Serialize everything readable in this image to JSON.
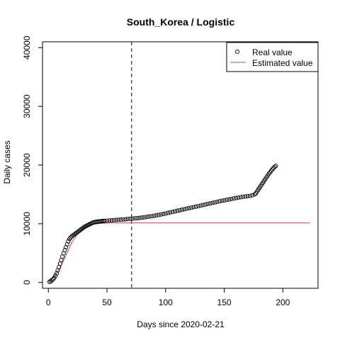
{
  "chart_data": {
    "type": "scatter",
    "title": "South_Korea / Logistic",
    "xlabel": "Days since 2020-02-21",
    "ylabel": "Daily cases",
    "xlim": [
      -5,
      230
    ],
    "ylim": [
      -1000,
      41000
    ],
    "x_ticks": [
      0,
      50,
      100,
      150,
      200
    ],
    "y_ticks": [
      0,
      10000,
      20000,
      30000,
      40000
    ],
    "vline_x": 71,
    "legend": {
      "position": "top-right",
      "entries": [
        {
          "label": "Real value",
          "marker": "open-circle",
          "color": "#000000"
        },
        {
          "label": "Estimated value",
          "marker": "line",
          "color": "#c0506e"
        }
      ]
    },
    "series": [
      {
        "name": "Real value",
        "marker": "open-circle",
        "x": [
          1,
          2,
          3,
          4,
          5,
          6,
          7,
          8,
          9,
          10,
          11,
          12,
          13,
          14,
          15,
          16,
          17,
          18,
          19,
          20,
          21,
          22,
          23,
          24,
          25,
          26,
          27,
          28,
          29,
          30,
          31,
          32,
          33,
          34,
          35,
          36,
          37,
          38,
          39,
          40,
          41,
          42,
          43,
          44,
          45,
          46,
          47,
          48,
          50,
          52,
          54,
          56,
          58,
          60,
          62,
          64,
          66,
          68,
          70,
          72,
          74,
          76,
          78,
          80,
          82,
          84,
          86,
          88,
          90,
          92,
          94,
          96,
          98,
          100,
          102,
          104,
          106,
          108,
          110,
          112,
          114,
          116,
          118,
          120,
          122,
          124,
          126,
          128,
          130,
          132,
          134,
          136,
          138,
          140,
          142,
          144,
          146,
          148,
          150,
          152,
          154,
          156,
          158,
          160,
          162,
          164,
          166,
          168,
          170,
          172,
          174,
          176,
          177,
          178,
          179,
          180,
          181,
          182,
          183,
          184,
          185,
          186,
          187,
          188,
          189,
          190,
          191,
          192,
          193,
          194
        ],
        "y": [
          100,
          200,
          350,
          550,
          800,
          1150,
          1550,
          2050,
          2600,
          3200,
          3800,
          4400,
          4950,
          5500,
          6000,
          6500,
          7000,
          7400,
          7650,
          7850,
          8000,
          8150,
          8300,
          8450,
          8600,
          8750,
          8900,
          9050,
          9200,
          9350,
          9500,
          9600,
          9700,
          9800,
          9900,
          10000,
          10100,
          10200,
          10250,
          10300,
          10330,
          10360,
          10390,
          10410,
          10430,
          10450,
          10470,
          10490,
          10520,
          10550,
          10580,
          10610,
          10640,
          10670,
          10700,
          10730,
          10760,
          10800,
          10840,
          10880,
          10920,
          10960,
          11000,
          11050,
          11100,
          11160,
          11220,
          11280,
          11350,
          11420,
          11500,
          11580,
          11660,
          11750,
          11840,
          11930,
          12020,
          12110,
          12200,
          12290,
          12380,
          12470,
          12560,
          12650,
          12740,
          12830,
          12920,
          13010,
          13100,
          13190,
          13280,
          13370,
          13460,
          13550,
          13640,
          13730,
          13820,
          13900,
          13980,
          14060,
          14140,
          14220,
          14300,
          14380,
          14450,
          14520,
          14590,
          14650,
          14700,
          14750,
          14850,
          15000,
          15200,
          15500,
          15800,
          16100,
          16400,
          16700,
          17000,
          17300,
          17600,
          17900,
          18200,
          18500,
          18750,
          19000,
          19250,
          19500,
          19700,
          19850
        ]
      },
      {
        "name": "Estimated value",
        "marker": "line",
        "x": [
          0,
          5,
          10,
          15,
          20,
          25,
          30,
          35,
          40,
          45,
          50,
          55,
          60,
          70,
          80,
          100,
          150,
          200,
          223
        ],
        "y": [
          350,
          1000,
          2500,
          4600,
          6800,
          8300,
          9200,
          9700,
          9950,
          10060,
          10110,
          10130,
          10140,
          10150,
          10150,
          10150,
          10150,
          10150,
          10150
        ]
      }
    ]
  }
}
